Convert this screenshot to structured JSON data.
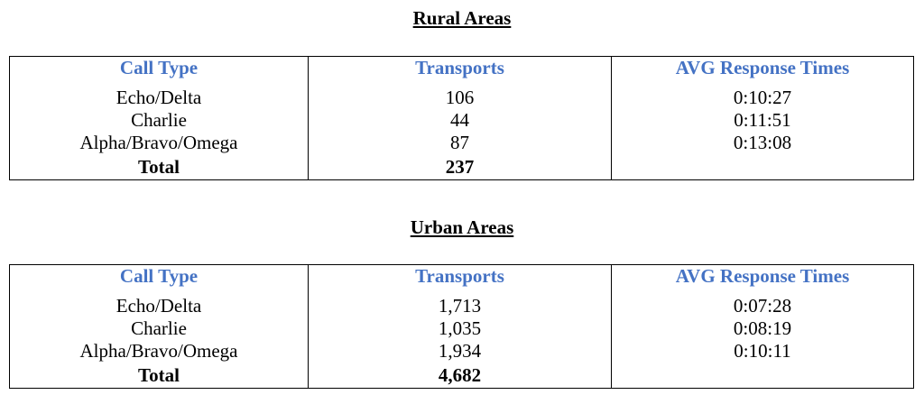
{
  "sections": [
    {
      "title": "Rural Areas",
      "table": {
        "header": [
          "Call Type",
          "Transports",
          "AVG Response Times"
        ],
        "rows": [
          [
            "Echo/Delta",
            "106",
            "0:10:27"
          ],
          [
            "Charlie",
            "44",
            "0:11:51"
          ],
          [
            "Alpha/Bravo/Omega",
            "87",
            "0:13:08"
          ]
        ],
        "total": [
          "Total",
          "237"
        ]
      }
    },
    {
      "title": "Urban Areas",
      "table": {
        "header": [
          "Call Type",
          "Transports",
          "AVG Response Times"
        ],
        "rows": [
          [
            "Echo/Delta",
            "1,713",
            "0:07:28"
          ],
          [
            "Charlie",
            "1,035",
            "0:08:19"
          ],
          [
            "Alpha/Bravo/Omega",
            "1,934",
            "0:10:11"
          ]
        ],
        "total": [
          "Total",
          "4,682"
        ]
      }
    }
  ]
}
